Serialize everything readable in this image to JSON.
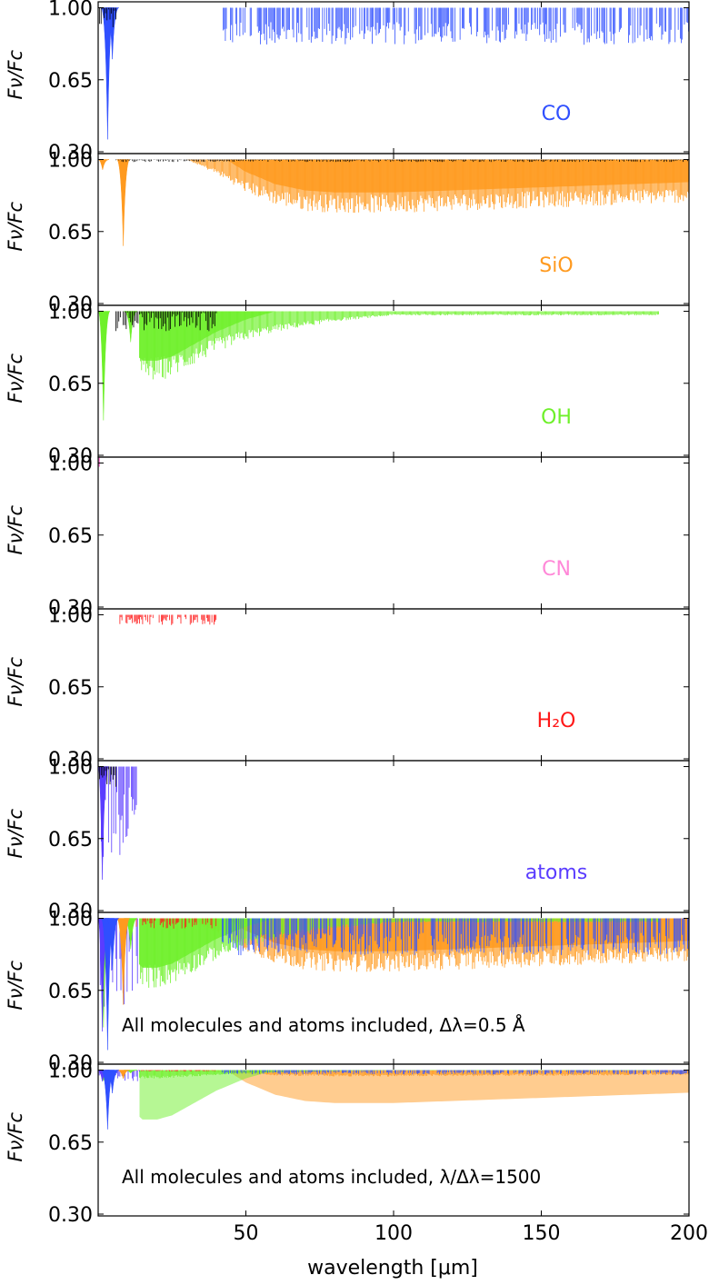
{
  "chart_data": {
    "type": "line",
    "x_axis": {
      "label": "wavelength [μm]",
      "range": [
        0,
        200
      ],
      "ticks": [
        50,
        100,
        150,
        200
      ]
    },
    "y_axis": {
      "label": "Fν/Fc",
      "range": [
        0.3,
        1.02
      ],
      "ticks": [
        "0.30",
        "0.65",
        "1.00"
      ]
    },
    "panels": [
      {
        "id": "co",
        "label": "CO",
        "color": "#2f4fff",
        "features": [
          {
            "x": 3.2,
            "min": 0.36
          },
          {
            "x": 4.8,
            "min": 0.75
          }
        ],
        "forest": {
          "from": 42,
          "to": 200,
          "min_depth": 0.82,
          "max_depth": 0.93
        },
        "black_overlay": {
          "from": 0,
          "to": 6
        }
      },
      {
        "id": "sio",
        "label": "SiO",
        "color": "#ff9a1f",
        "features": [
          {
            "x": 1.5,
            "min": 0.95
          },
          {
            "x": 8.5,
            "min": 0.58
          }
        ],
        "envelope": [
          [
            30,
            1.0
          ],
          [
            40,
            0.93
          ],
          [
            50,
            0.84
          ],
          [
            60,
            0.78
          ],
          [
            70,
            0.75
          ],
          [
            80,
            0.74
          ],
          [
            100,
            0.74
          ],
          [
            120,
            0.75
          ],
          [
            140,
            0.76
          ],
          [
            160,
            0.77
          ],
          [
            180,
            0.78
          ],
          [
            200,
            0.79
          ]
        ],
        "forest": {
          "from": 28,
          "to": 200,
          "min_depth": 0.72,
          "max_depth": 0.9
        },
        "black_overlay": {
          "from": 6,
          "to": 200
        }
      },
      {
        "id": "oh",
        "label": "OH",
        "color": "#6ef02a",
        "features": [
          {
            "x": 1.8,
            "min": 0.47
          },
          {
            "x": 11,
            "min": 0.85
          }
        ],
        "envelope": [
          [
            8,
            0.98
          ],
          [
            12,
            0.7
          ],
          [
            15,
            0.66
          ],
          [
            20,
            0.66
          ],
          [
            25,
            0.68
          ],
          [
            30,
            0.72
          ],
          [
            40,
            0.8
          ],
          [
            50,
            0.86
          ],
          [
            60,
            0.9
          ],
          [
            80,
            0.95
          ],
          [
            100,
            0.98
          ]
        ],
        "forest": {
          "from": 14,
          "to": 190,
          "min_depth": 0.66,
          "max_depth": 0.95
        },
        "black_overlay": {
          "from": 6,
          "to": 40
        }
      },
      {
        "id": "cn",
        "label": "CN",
        "color": "#ff88d8",
        "features": [],
        "forest": null,
        "black_overlay": null
      },
      {
        "id": "h2o",
        "label": "H₂O",
        "color": "#ff1818",
        "features": [],
        "forest": {
          "from": 7,
          "to": 40,
          "min_depth": 0.95,
          "max_depth": 0.99
        },
        "black_overlay": null
      },
      {
        "id": "atoms",
        "label": "atoms",
        "color": "#5a3cff",
        "features": [
          {
            "x": 1.4,
            "min": 0.45
          }
        ],
        "forest": {
          "from": 0,
          "to": 14,
          "min_depth": 0.55,
          "max_depth": 0.95
        },
        "black_overlay": {
          "from": 0,
          "to": 6
        }
      },
      {
        "id": "all-high",
        "label": "All molecules and atoms included, Δλ=0.5 Å",
        "color": "#000000",
        "combined": true,
        "resolution": "high"
      },
      {
        "id": "all-low",
        "label": "All molecules and atoms included, λ/Δλ=1500",
        "color": "#000000",
        "combined": true,
        "resolution": "low"
      }
    ],
    "grid": false,
    "legend": "none"
  }
}
